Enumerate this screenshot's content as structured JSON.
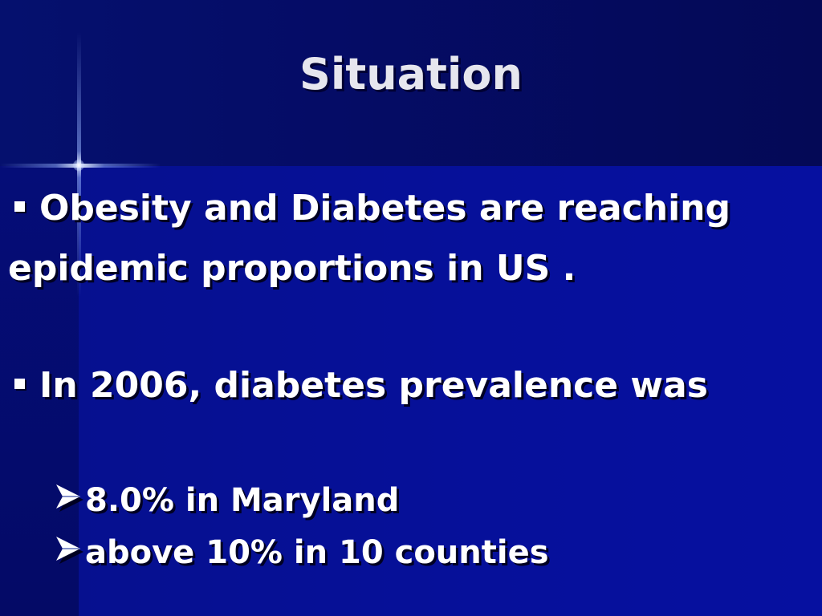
{
  "slide": {
    "title": "Situation",
    "bullets": [
      {
        "line1": "Obesity and Diabetes are reaching",
        "line2": "epidemic proportions in US ."
      },
      {
        "line1": "In 2006, diabetes prevalence was"
      }
    ],
    "sub_bullets": [
      "8.0% in Maryland",
      "above 10% in 10 counties"
    ]
  },
  "colors": {
    "background": "#06108f",
    "title_band": "#050c66",
    "text": "#ffffff",
    "title_text": "#e6e6ee"
  },
  "icons": {
    "bullet": "square-bullet-icon",
    "sub_bullet": "arrowhead-bullet-icon"
  }
}
